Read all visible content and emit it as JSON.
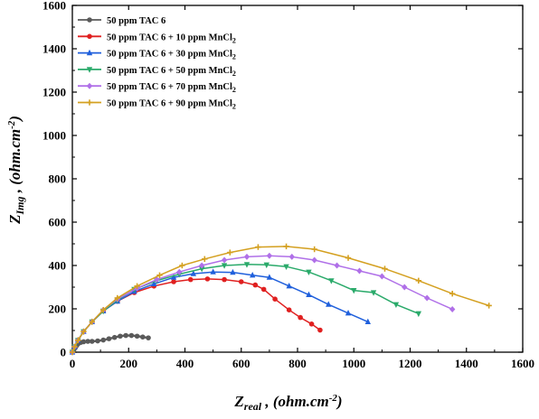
{
  "chart_data": {
    "type": "line",
    "xlim": [
      0,
      1600
    ],
    "ylim": [
      0,
      1600
    ],
    "x_ticks": [
      0,
      200,
      400,
      600,
      800,
      1000,
      1200,
      1400,
      1600
    ],
    "y_ticks": [
      0,
      200,
      400,
      600,
      800,
      1000,
      1200,
      1400,
      1600
    ],
    "x_tick_labels": [
      "0",
      "200",
      "400",
      "600",
      "800",
      "1000",
      "1200",
      "1400",
      "1600"
    ],
    "y_tick_labels": [
      "0",
      "200",
      "400",
      "600",
      "800",
      "1000",
      "1200",
      "1400",
      "1600"
    ],
    "xlabel": {
      "main": "Z",
      "sub": "real",
      "rest": " , (ohm.cm",
      "sup": "-2",
      "close": ")"
    },
    "ylabel": {
      "main": "Z",
      "sub": "Img",
      "rest": " , (ohm.cm",
      "sup": "-2",
      "close": ")"
    },
    "grid": false,
    "legend_position": "top-left",
    "series": [
      {
        "name": "50 ppm TAC 6",
        "name_sub": "",
        "color": "#5a5a5a",
        "marker": "circle",
        "x": [
          0,
          5,
          10,
          15,
          20,
          30,
          40,
          55,
          70,
          90,
          110,
          130,
          150,
          170,
          190,
          210,
          230,
          250,
          270
        ],
        "y": [
          0,
          10,
          20,
          30,
          38,
          45,
          48,
          50,
          50,
          52,
          56,
          62,
          68,
          74,
          77,
          77,
          74,
          70,
          66
        ]
      },
      {
        "name": "50 ppm TAC 6 + 10 ppm MnCl",
        "name_sub": "2",
        "color": "#e02020",
        "marker": "circle",
        "x": [
          0,
          8,
          20,
          40,
          70,
          110,
          160,
          220,
          290,
          360,
          420,
          480,
          540,
          600,
          650,
          680,
          720,
          770,
          810,
          850,
          880
        ],
        "y": [
          0,
          25,
          55,
          95,
          140,
          190,
          235,
          275,
          305,
          325,
          335,
          338,
          335,
          325,
          310,
          290,
          245,
          195,
          160,
          130,
          102
        ]
      },
      {
        "name": "50 ppm TAC 6 + 30 ppm MnCl",
        "name_sub": "2",
        "color": "#2060dc",
        "marker": "triangle",
        "x": [
          0,
          8,
          20,
          40,
          70,
          110,
          160,
          220,
          290,
          360,
          430,
          500,
          570,
          640,
          700,
          770,
          840,
          910,
          980,
          1050
        ],
        "y": [
          0,
          25,
          55,
          95,
          140,
          190,
          235,
          280,
          315,
          345,
          362,
          370,
          368,
          355,
          345,
          305,
          265,
          220,
          180,
          140
        ]
      },
      {
        "name": "50 ppm TAC 6 + 50 ppm MnCl",
        "name_sub": "2",
        "color": "#2aaa6a",
        "marker": "triangle-down",
        "x": [
          0,
          8,
          20,
          40,
          70,
          110,
          160,
          220,
          300,
          380,
          460,
          540,
          620,
          690,
          760,
          840,
          920,
          1000,
          1070,
          1150,
          1230
        ],
        "y": [
          0,
          25,
          55,
          95,
          140,
          190,
          240,
          290,
          330,
          360,
          385,
          400,
          405,
          403,
          395,
          370,
          330,
          285,
          275,
          220,
          178
        ]
      },
      {
        "name": "50 ppm TAC 6 + 70 ppm MnCl",
        "name_sub": "2",
        "color": "#b070e8",
        "marker": "diamond",
        "x": [
          0,
          8,
          20,
          40,
          70,
          110,
          160,
          230,
          300,
          380,
          460,
          540,
          620,
          700,
          780,
          860,
          940,
          1020,
          1100,
          1180,
          1260,
          1350
        ],
        "y": [
          0,
          25,
          55,
          95,
          140,
          195,
          245,
          295,
          335,
          370,
          400,
          425,
          440,
          445,
          440,
          425,
          400,
          375,
          350,
          300,
          250,
          198
        ]
      },
      {
        "name": "50 ppm TAC 6 + 90 ppm MnCl",
        "name_sub": "2",
        "color": "#d4a020",
        "marker": "plus",
        "x": [
          0,
          8,
          20,
          40,
          70,
          110,
          160,
          230,
          310,
          390,
          470,
          560,
          660,
          760,
          860,
          980,
          1110,
          1230,
          1350,
          1480
        ],
        "y": [
          0,
          25,
          55,
          95,
          140,
          195,
          250,
          305,
          355,
          400,
          430,
          460,
          485,
          488,
          475,
          435,
          385,
          330,
          270,
          215
        ]
      }
    ]
  }
}
